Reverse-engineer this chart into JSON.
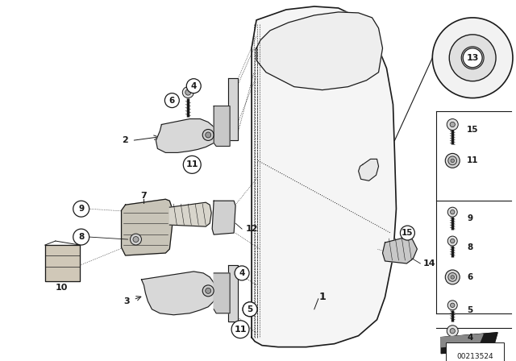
{
  "bg_color": "#ffffff",
  "line_color": "#1a1a1a",
  "part_number": "00213524",
  "fig_width": 6.4,
  "fig_height": 4.48,
  "dpi": 100
}
